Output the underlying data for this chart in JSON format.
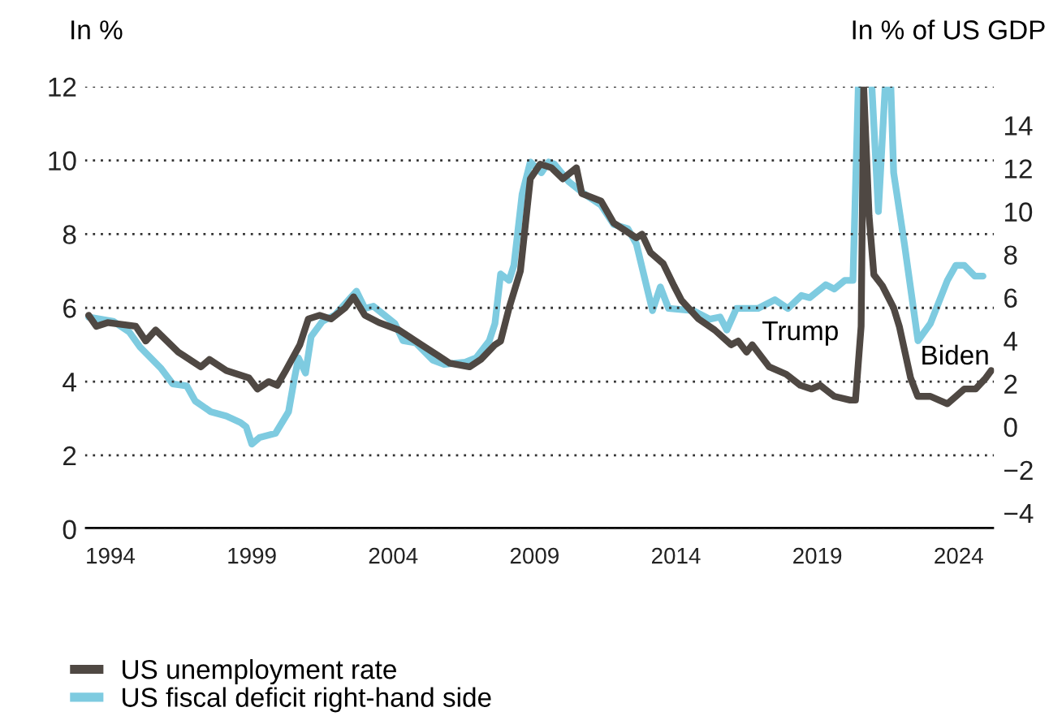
{
  "chart_data": {
    "type": "line",
    "ylabel": "In %",
    "y2label": "In % of US GDP",
    "xlim": [
      1993.1,
      2025.25
    ],
    "xticks": [
      1994,
      1999,
      2004,
      2009,
      2014,
      2019,
      2024
    ],
    "ylim": [
      0,
      12
    ],
    "yticks": [
      0,
      2,
      4,
      6,
      8,
      10,
      12
    ],
    "y2lim": [
      -4.75,
      15.8
    ],
    "y2ticks": [
      {
        "value": -4,
        "label": "−4"
      },
      {
        "value": -2,
        "label": "−2"
      },
      0,
      2,
      4,
      6,
      8,
      10,
      12,
      14
    ],
    "grid": "y",
    "legend": "bottom",
    "line_style": "solid",
    "series": [
      {
        "name": "US unemployment rate",
        "color": "#4f4843",
        "x": [
          1993.23,
          1993.5,
          1993.9,
          1994.9,
          1995.25,
          1995.6,
          1996.4,
          1996.6,
          1997.2,
          1997.5,
          1998.1,
          1998.9,
          1999.2,
          1999.6,
          1999.9,
          2000.2,
          2000.7,
          2001.0,
          2001.4,
          2001.8,
          2002.3,
          2002.6,
          2003.0,
          2003.5,
          2004.2,
          2005.0,
          2005.6,
          2006.0,
          2006.7,
          2007.1,
          2007.6,
          2007.8,
          2008.1,
          2008.5,
          2008.85,
          2009.2,
          2009.6,
          2010.0,
          2010.48,
          2010.67,
          2011.35,
          2011.8,
          2012.6,
          2012.8,
          2013.1,
          2013.55,
          2013.93,
          2014.2,
          2014.8,
          2015.37,
          2015.95,
          2016.2,
          2016.5,
          2016.7,
          2017.3,
          2017.9,
          2018.4,
          2018.8,
          2019.1,
          2019.6,
          2020.16,
          2020.35,
          2020.55,
          2020.64,
          2020.83,
          2021.0,
          2021.3,
          2021.7,
          2021.9,
          2022.3,
          2022.55,
          2023.0,
          2023.6,
          2023.9,
          2024.2,
          2024.6,
          2024.96,
          2025.15
        ],
        "values": [
          5.8,
          5.5,
          5.6,
          5.5,
          5.1,
          5.4,
          4.8,
          4.7,
          4.4,
          4.6,
          4.3,
          4.1,
          3.8,
          4.0,
          3.9,
          4.3,
          5.0,
          5.7,
          5.8,
          5.7,
          6.0,
          6.3,
          5.8,
          5.6,
          5.4,
          5.0,
          4.7,
          4.5,
          4.4,
          4.6,
          5.0,
          5.1,
          6.0,
          7.0,
          9.5,
          9.9,
          9.8,
          9.5,
          9.8,
          9.1,
          8.9,
          8.3,
          7.9,
          8.0,
          7.5,
          7.2,
          6.6,
          6.2,
          5.7,
          5.4,
          5.0,
          5.1,
          4.8,
          5.0,
          4.4,
          4.2,
          3.9,
          3.8,
          3.9,
          3.6,
          3.5,
          3.5,
          5.5,
          12.0,
          8.5,
          6.9,
          6.6,
          6.0,
          5.5,
          4.1,
          3.6,
          3.6,
          3.4,
          3.6,
          3.8,
          3.8,
          4.1,
          4.3
        ]
      },
      {
        "name": "US fiscal deficit right-hand side",
        "color": "#7ecbe0",
        "axis": "y2",
        "x": [
          1993.23,
          1994.1,
          1994.67,
          1995.05,
          1995.8,
          1996.2,
          1996.7,
          1997.0,
          1997.55,
          1998.1,
          1998.6,
          1998.8,
          1999.0,
          1999.27,
          1999.84,
          2000.3,
          2000.5,
          2000.65,
          2000.9,
          2001.1,
          2001.5,
          2001.95,
          2002.7,
          2003.0,
          2003.3,
          2004.06,
          2004.35,
          2004.8,
          2005.4,
          2005.8,
          2006.55,
          2006.93,
          2007.4,
          2007.6,
          2007.8,
          2008.1,
          2008.27,
          2008.56,
          2008.85,
          2009.24,
          2009.5,
          2009.7,
          2010.2,
          2010.77,
          2011.35,
          2011.8,
          2012.3,
          2012.6,
          2013.17,
          2013.45,
          2013.74,
          2014.6,
          2015.2,
          2015.56,
          2015.8,
          2016.14,
          2016.9,
          2017.5,
          2017.96,
          2018.44,
          2018.73,
          2019.3,
          2019.6,
          2019.97,
          2020.26,
          2020.45,
          2020.7,
          2020.93,
          2021.16,
          2021.4,
          2021.5,
          2021.6,
          2021.7,
          2022.08,
          2022.56,
          2023.0,
          2023.6,
          2023.9,
          2024.2,
          2024.57,
          2024.86
        ],
        "values": [
          5.1,
          4.9,
          4.4,
          3.7,
          2.7,
          2.0,
          1.9,
          1.2,
          0.7,
          0.5,
          0.2,
          0.0,
          -0.8,
          -0.5,
          -0.3,
          0.7,
          2.2,
          3.2,
          2.5,
          4.2,
          4.9,
          5.2,
          6.3,
          5.5,
          5.6,
          4.8,
          4.0,
          3.9,
          3.1,
          2.9,
          3.0,
          3.2,
          4.0,
          4.8,
          7.1,
          6.8,
          7.5,
          10.8,
          12.3,
          11.8,
          12.3,
          12.2,
          11.4,
          10.8,
          10.3,
          9.4,
          9.2,
          8.5,
          5.4,
          6.5,
          5.5,
          5.4,
          5.0,
          5.1,
          4.5,
          5.5,
          5.5,
          5.9,
          5.5,
          6.1,
          6.0,
          6.6,
          6.4,
          6.8,
          6.8,
          15.8,
          null,
          15.8,
          10.0,
          15.8,
          null,
          15.8,
          11.8,
          8.5,
          4.0,
          4.8,
          6.8,
          7.5,
          7.5,
          7.0,
          7.0
        ]
      }
    ],
    "annotations": [
      "Trump",
      "Biden"
    ]
  }
}
